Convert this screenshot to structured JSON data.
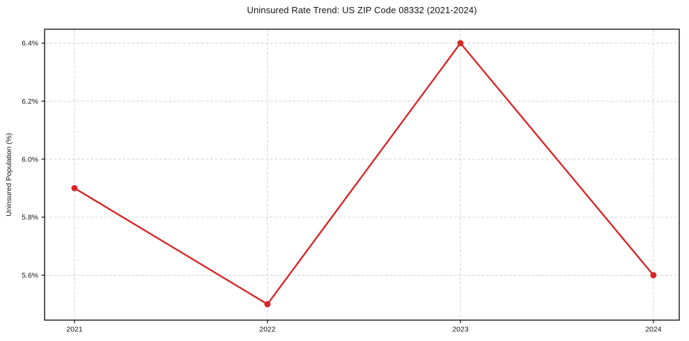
{
  "figure": {
    "background": "#ffffff"
  },
  "chart_data": {
    "type": "line",
    "title": "Uninsured Rate Trend: US ZIP Code 08332 (2021-2024)",
    "xlabel": "",
    "ylabel": "Uninsured Population (%)",
    "categories": [
      "2021",
      "2022",
      "2023",
      "2024"
    ],
    "x": [
      2021,
      2022,
      2023,
      2024
    ],
    "series": [
      {
        "name": "Uninsured Population (%)",
        "values": [
          5.9,
          5.5,
          6.4,
          5.6
        ],
        "color": "#d62728",
        "marker": "circle",
        "line_width": 2.4,
        "marker_size": 4.5
      }
    ],
    "yticks": [
      5.6,
      5.8,
      6.0,
      6.2,
      6.4
    ],
    "ytick_labels": [
      "5.6%",
      "5.8%",
      "6.0%",
      "6.2%",
      "6.4%"
    ],
    "xlim": [
      2020.845,
      2024.134
    ],
    "ylim": [
      5.445,
      6.448
    ],
    "grid": true,
    "grid_style": "dashed",
    "grid_color": "#cccccc",
    "axis_color": "#000000",
    "legend": false
  }
}
